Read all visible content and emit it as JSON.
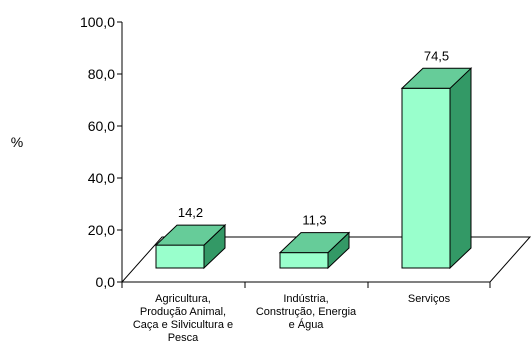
{
  "chart_data": {
    "type": "bar",
    "style": "3d",
    "ylabel": "%",
    "xlabel": "",
    "ylim": [
      0,
      100
    ],
    "yticks": [
      "0,0",
      "20,0",
      "40,0",
      "60,0",
      "80,0",
      "100,0"
    ],
    "grid": false,
    "legend": "none",
    "categories": [
      [
        "Agricultura,",
        "Produção Animal,",
        "Caça e Silvicultura e",
        "Pesca"
      ],
      [
        "Indústria,",
        "Construção, Energia",
        "e Água"
      ],
      [
        "Serviços"
      ]
    ],
    "values": [
      14.2,
      11.3,
      74.5
    ],
    "value_labels": [
      "14,2",
      "11,3",
      "74,5"
    ],
    "colors": {
      "bar_front": "#99FFCC",
      "bar_top": "#66CC99",
      "bar_side": "#339966",
      "axis": "#000000"
    }
  }
}
